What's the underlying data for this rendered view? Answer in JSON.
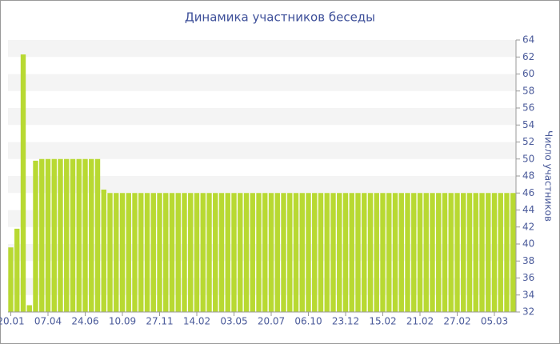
{
  "chart_data": {
    "type": "bar",
    "title": "Динамика участников беседы",
    "y_label": "Число участников",
    "categories": [
      "20.01",
      null,
      null,
      null,
      null,
      null,
      "07.04",
      null,
      null,
      null,
      null,
      null,
      "24.06",
      null,
      null,
      null,
      null,
      null,
      "10.09",
      null,
      null,
      null,
      null,
      null,
      "27.11",
      null,
      null,
      null,
      null,
      null,
      "14.02",
      null,
      null,
      null,
      null,
      null,
      "03.05",
      null,
      null,
      null,
      null,
      null,
      "20.07",
      null,
      null,
      null,
      null,
      null,
      "06.10",
      null,
      null,
      null,
      null,
      null,
      "23.12",
      null,
      null,
      null,
      null,
      null,
      "15.02",
      null,
      null,
      null,
      null,
      null,
      "21.02",
      null,
      null,
      null,
      null,
      null,
      "27.02",
      null,
      null,
      null,
      null,
      null,
      "05.03",
      null,
      null,
      null
    ],
    "values": [
      39.6,
      41.8,
      62.3,
      32.8,
      49.8,
      50,
      50,
      50,
      50,
      50,
      50,
      50,
      50,
      50,
      50,
      46.4,
      46,
      46,
      46,
      46,
      46,
      46,
      46,
      46,
      46,
      46,
      46,
      46,
      46,
      46,
      46,
      46,
      46,
      46,
      46,
      46,
      46,
      46,
      46,
      46,
      46,
      46,
      46,
      46,
      46,
      46,
      46,
      46,
      46,
      46,
      46,
      46,
      46,
      46,
      46,
      46,
      46,
      46,
      46,
      46,
      46,
      46,
      46,
      46,
      46,
      46,
      46,
      46,
      46,
      46,
      46,
      46,
      46,
      46,
      46,
      46,
      46,
      46,
      46,
      46,
      46,
      46
    ],
    "color": "#b8d932",
    "ylim": [
      32,
      64
    ],
    "yticks": [
      32,
      34,
      36,
      38,
      40,
      42,
      44,
      46,
      48,
      50,
      52,
      54,
      56,
      58,
      60,
      62,
      64
    ],
    "grid": true,
    "y_axis_side": "right"
  }
}
